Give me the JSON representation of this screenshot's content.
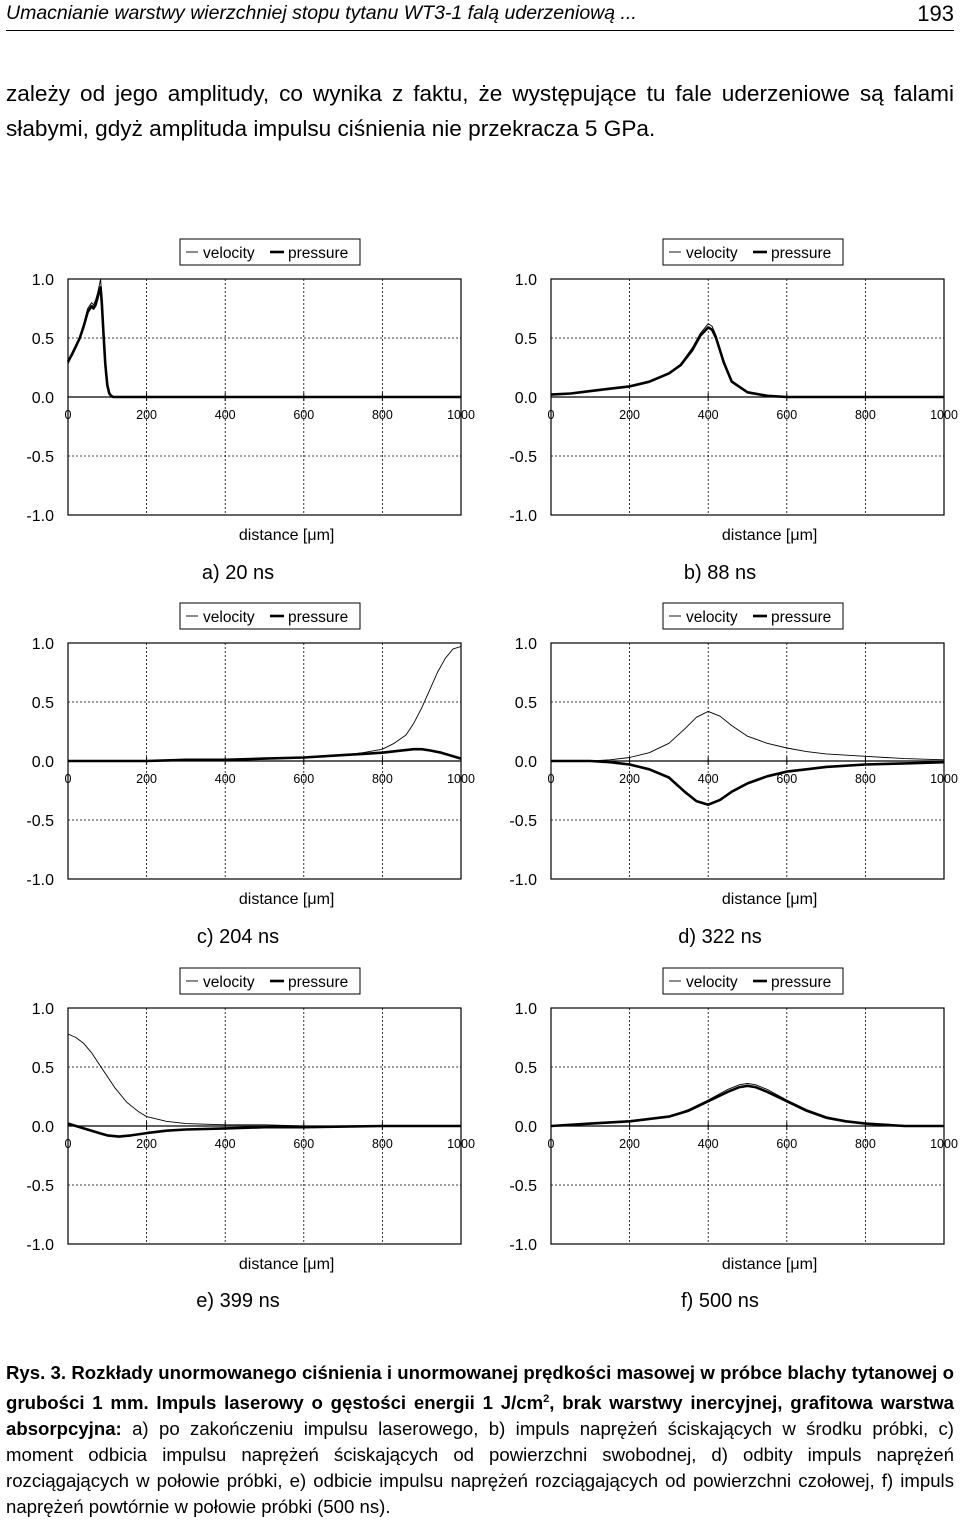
{
  "header": {
    "title": "Umacnianie warstwy wierzchniej stopu tytanu WT3-1 falą uderzeniową ...",
    "page_number": "193"
  },
  "intro": {
    "text": "zależy od jego amplitudy, co wynika z faktu, że występujące tu fale uderzeniowe są falami słabymi, gdyż amplituda impulsu ciśnienia nie przekracza 5 GPa."
  },
  "figure": {
    "legend_velocity": "velocity",
    "legend_pressure": "pressure",
    "xlabel": "distance [μm]",
    "y_ticks": [
      "1.0",
      "0.5",
      "0.0",
      "-0.5",
      "-1.0"
    ],
    "x_ticks": [
      "0",
      "200",
      "400",
      "600",
      "800",
      "1000"
    ]
  },
  "chart_data": [
    {
      "type": "line",
      "sublabel": "a) 20 ns",
      "xlabel": "distance [μm]",
      "xlim": [
        0,
        1000
      ],
      "ylim": [
        -1.0,
        1.0
      ],
      "grid": true,
      "legend": "top",
      "series": [
        {
          "name": "velocity",
          "x": [
            0,
            10,
            20,
            30,
            40,
            50,
            60,
            65,
            70,
            75,
            80,
            83,
            86,
            90,
            95,
            100,
            105,
            110,
            115,
            120,
            1000
          ],
          "y": [
            0.28,
            0.35,
            0.42,
            0.5,
            0.62,
            0.75,
            0.8,
            0.78,
            0.82,
            0.88,
            0.95,
            1.0,
            0.85,
            0.6,
            0.3,
            0.1,
            0.03,
            0.01,
            0.0,
            0.0,
            0.0
          ]
        },
        {
          "name": "pressure",
          "x": [
            0,
            10,
            20,
            30,
            40,
            50,
            60,
            65,
            70,
            75,
            80,
            83,
            86,
            90,
            95,
            100,
            105,
            110,
            115,
            120,
            1000
          ],
          "y": [
            0.3,
            0.36,
            0.43,
            0.5,
            0.6,
            0.72,
            0.77,
            0.75,
            0.78,
            0.84,
            0.9,
            0.93,
            0.8,
            0.55,
            0.28,
            0.1,
            0.03,
            0.01,
            0.0,
            0.0,
            0.0
          ]
        }
      ]
    },
    {
      "type": "line",
      "sublabel": "b) 88 ns",
      "xlabel": "distance [μm]",
      "xlim": [
        0,
        1000
      ],
      "ylim": [
        -1.0,
        1.0
      ],
      "grid": true,
      "legend": "top",
      "series": [
        {
          "name": "velocity",
          "x": [
            0,
            50,
            100,
            150,
            200,
            250,
            300,
            330,
            360,
            380,
            400,
            410,
            420,
            440,
            460,
            500,
            550,
            600,
            650,
            700,
            1000
          ],
          "y": [
            0.02,
            0.03,
            0.05,
            0.07,
            0.09,
            0.13,
            0.2,
            0.28,
            0.42,
            0.54,
            0.62,
            0.6,
            0.52,
            0.3,
            0.14,
            0.04,
            0.01,
            0.0,
            0.0,
            0.0,
            0.0
          ]
        },
        {
          "name": "pressure",
          "x": [
            0,
            50,
            100,
            150,
            200,
            250,
            300,
            330,
            360,
            380,
            400,
            410,
            420,
            440,
            460,
            500,
            550,
            600,
            650,
            700,
            1000
          ],
          "y": [
            0.02,
            0.03,
            0.05,
            0.07,
            0.09,
            0.13,
            0.2,
            0.27,
            0.4,
            0.52,
            0.59,
            0.57,
            0.5,
            0.29,
            0.13,
            0.04,
            0.01,
            0.0,
            0.0,
            0.0,
            0.0
          ]
        }
      ]
    },
    {
      "type": "line",
      "sublabel": "c) 204 ns",
      "xlabel": "distance [μm]",
      "xlim": [
        0,
        1000
      ],
      "ylim": [
        -1.0,
        1.0
      ],
      "grid": true,
      "legend": "top",
      "series": [
        {
          "name": "velocity",
          "x": [
            0,
            100,
            200,
            300,
            400,
            500,
            600,
            700,
            750,
            800,
            830,
            860,
            880,
            900,
            920,
            940,
            960,
            980,
            1000
          ],
          "y": [
            0.0,
            0.0,
            0.0,
            0.01,
            0.01,
            0.02,
            0.03,
            0.05,
            0.07,
            0.1,
            0.15,
            0.22,
            0.32,
            0.45,
            0.6,
            0.75,
            0.87,
            0.95,
            0.97
          ]
        },
        {
          "name": "pressure",
          "x": [
            0,
            100,
            200,
            300,
            400,
            500,
            600,
            700,
            750,
            800,
            850,
            880,
            900,
            920,
            950,
            980,
            1000
          ],
          "y": [
            0.0,
            0.0,
            0.0,
            0.01,
            0.01,
            0.02,
            0.03,
            0.05,
            0.06,
            0.07,
            0.09,
            0.1,
            0.1,
            0.09,
            0.07,
            0.04,
            0.02
          ]
        }
      ]
    },
    {
      "type": "line",
      "sublabel": "d) 322 ns",
      "xlabel": "distance [μm]",
      "xlim": [
        0,
        1000
      ],
      "ylim": [
        -1.0,
        1.0
      ],
      "grid": true,
      "legend": "top",
      "series": [
        {
          "name": "velocity",
          "x": [
            0,
            100,
            150,
            200,
            250,
            300,
            340,
            370,
            400,
            430,
            460,
            500,
            550,
            600,
            650,
            700,
            800,
            900,
            1000
          ],
          "y": [
            0.0,
            0.0,
            0.01,
            0.03,
            0.07,
            0.15,
            0.27,
            0.37,
            0.42,
            0.38,
            0.3,
            0.21,
            0.15,
            0.11,
            0.08,
            0.06,
            0.04,
            0.02,
            0.01
          ]
        },
        {
          "name": "pressure",
          "x": [
            0,
            100,
            150,
            200,
            250,
            300,
            340,
            370,
            400,
            430,
            460,
            500,
            550,
            600,
            650,
            700,
            800,
            900,
            1000
          ],
          "y": [
            0.0,
            0.0,
            -0.01,
            -0.03,
            -0.07,
            -0.14,
            -0.26,
            -0.34,
            -0.37,
            -0.33,
            -0.26,
            -0.19,
            -0.13,
            -0.09,
            -0.07,
            -0.05,
            -0.03,
            -0.02,
            -0.01
          ]
        }
      ]
    },
    {
      "type": "line",
      "sublabel": "e) 399 ns",
      "xlabel": "distance [μm]",
      "xlim": [
        0,
        1000
      ],
      "ylim": [
        -1.0,
        1.0
      ],
      "grid": true,
      "legend": "top",
      "series": [
        {
          "name": "velocity",
          "x": [
            0,
            20,
            40,
            60,
            80,
            100,
            120,
            150,
            180,
            200,
            250,
            300,
            400,
            500,
            600,
            800,
            1000
          ],
          "y": [
            0.78,
            0.75,
            0.7,
            0.62,
            0.52,
            0.42,
            0.32,
            0.2,
            0.12,
            0.08,
            0.04,
            0.02,
            0.01,
            0.01,
            0.0,
            0.0,
            0.0
          ]
        },
        {
          "name": "pressure",
          "x": [
            0,
            20,
            40,
            60,
            80,
            100,
            130,
            160,
            200,
            250,
            300,
            400,
            500,
            600,
            800,
            1000
          ],
          "y": [
            0.02,
            0.0,
            -0.02,
            -0.04,
            -0.06,
            -0.08,
            -0.09,
            -0.08,
            -0.06,
            -0.04,
            -0.03,
            -0.02,
            -0.01,
            -0.01,
            0.0,
            0.0
          ]
        }
      ]
    },
    {
      "type": "line",
      "sublabel": "f) 500 ns",
      "xlabel": "distance [μm]",
      "xlim": [
        0,
        1000
      ],
      "ylim": [
        -1.0,
        1.0
      ],
      "grid": true,
      "legend": "top",
      "series": [
        {
          "name": "velocity",
          "x": [
            0,
            100,
            200,
            300,
            350,
            400,
            450,
            480,
            500,
            520,
            550,
            600,
            650,
            700,
            750,
            800,
            850,
            900,
            1000
          ],
          "y": [
            0.0,
            0.02,
            0.04,
            0.08,
            0.14,
            0.22,
            0.31,
            0.35,
            0.36,
            0.35,
            0.31,
            0.22,
            0.14,
            0.08,
            0.04,
            0.02,
            0.01,
            0.0,
            0.0
          ]
        },
        {
          "name": "pressure",
          "x": [
            0,
            100,
            200,
            300,
            350,
            400,
            450,
            480,
            500,
            520,
            550,
            600,
            650,
            700,
            750,
            800,
            850,
            900,
            1000
          ],
          "y": [
            0.0,
            0.02,
            0.04,
            0.08,
            0.13,
            0.21,
            0.29,
            0.33,
            0.34,
            0.33,
            0.29,
            0.21,
            0.13,
            0.07,
            0.04,
            0.02,
            0.01,
            0.0,
            0.0
          ]
        }
      ]
    }
  ],
  "caption": {
    "bold_part": "Rys. 3. Rozkłady unormowanego ciśnienia i unormowanej prędkości masowej w próbce blachy tytanowej o grubości 1 mm. Impuls laserowy o gęstości energii 1 J/cm",
    "bold_sup": "2",
    "bold_part2": ", brak warstwy inercyjnej, grafitowa warstwa absorpcyjna:",
    "normal_part": " a) po zakończeniu impulsu laserowego, b) impuls naprężeń ściskających w środku próbki, c) moment odbicia impulsu naprężeń ściskających od powierzchni swobodnej, d) odbity impuls naprężeń rozciągających w połowie próbki, e) odbicie impulsu naprężeń rozciągających od powierzchni czołowej, f) impuls naprężeń powtórnie w połowie próbki (500 ns)."
  }
}
